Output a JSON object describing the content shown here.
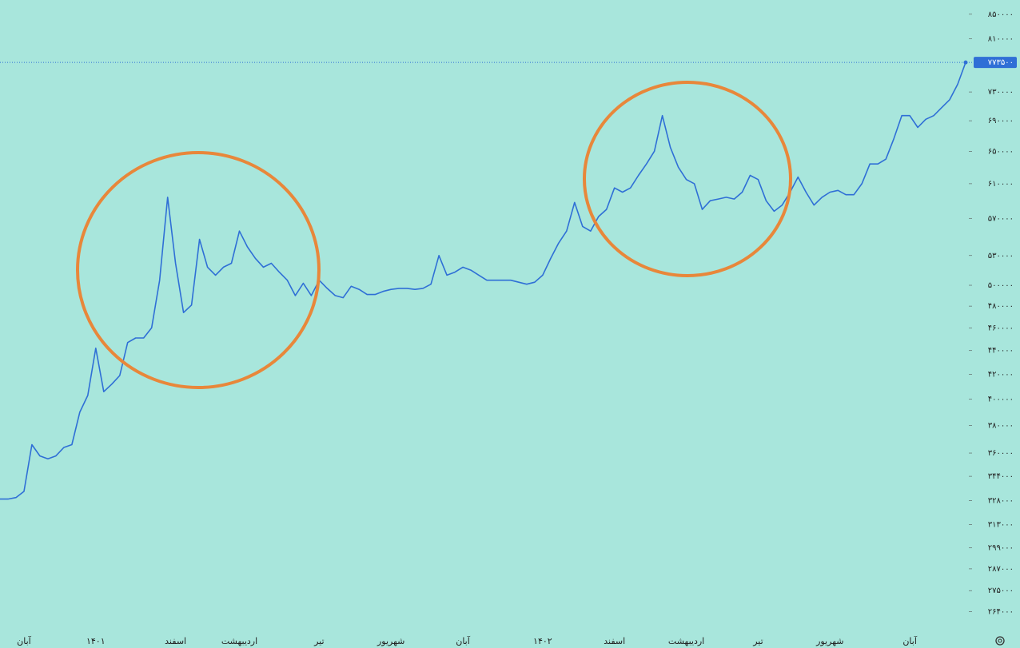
{
  "chart_data": {
    "type": "line",
    "scale": "log",
    "background": "#a8e6dc",
    "current_price": 773500,
    "current_price_label": "۷۷۳۵۰۰",
    "categories": [
      null,
      null,
      null,
      "آبان",
      null,
      null,
      null,
      null,
      null,
      null,
      null,
      null,
      "۱۴۰۱",
      null,
      null,
      null,
      null,
      null,
      null,
      null,
      null,
      null,
      "اسفند",
      null,
      null,
      null,
      null,
      null,
      null,
      null,
      "اردیبهشت",
      null,
      null,
      null,
      null,
      null,
      null,
      null,
      null,
      null,
      "تیر",
      null,
      null,
      null,
      null,
      null,
      null,
      null,
      null,
      "شهریور",
      null,
      null,
      null,
      null,
      null,
      null,
      null,
      null,
      "آبان",
      null,
      null,
      null,
      null,
      null,
      null,
      null,
      null,
      null,
      "۱۴۰۲",
      null,
      null,
      null,
      null,
      null,
      null,
      null,
      null,
      "اسفند",
      null,
      null,
      null,
      null,
      null,
      null,
      null,
      null,
      "اردیبهشت",
      null,
      null,
      null,
      null,
      null,
      null,
      null,
      null,
      "تیر",
      null,
      null,
      null,
      null,
      null,
      null,
      null,
      null,
      "شهریور",
      null,
      null,
      null,
      null,
      null,
      null,
      null,
      null,
      null,
      "آبان",
      null,
      null,
      null,
      null,
      null,
      null,
      null
    ],
    "series": [
      {
        "name": null,
        "color": "#2f6fd6",
        "values": [
          329000,
          329000,
          330000,
          334000,
          366000,
          358000,
          356000,
          358000,
          364000,
          366000,
          390000,
          403000,
          442000,
          406000,
          412000,
          419000,
          447000,
          451000,
          451000,
          460000,
          505000,
          594000,
          522000,
          474000,
          481000,
          547000,
          518000,
          510000,
          518000,
          522000,
          556000,
          539000,
          527000,
          518000,
          522000,
          513000,
          505000,
          490000,
          502000,
          490000,
          505000,
          497000,
          490000,
          488000,
          499000,
          496000,
          491000,
          491000,
          494000,
          496000,
          497000,
          497000,
          496000,
          497000,
          501000,
          530000,
          510000,
          513000,
          518000,
          515000,
          510000,
          505000,
          505000,
          505000,
          505000,
          503000,
          501000,
          503000,
          510000,
          527000,
          543000,
          556000,
          588000,
          561000,
          556000,
          572000,
          580000,
          605000,
          600000,
          605000,
          620000,
          634000,
          650000,
          697000,
          655000,
          630000,
          615000,
          610000,
          580000,
          590000,
          592000,
          594000,
          592000,
          600000,
          620000,
          615000,
          590000,
          578000,
          585000,
          600000,
          618000,
          600000,
          585000,
          594000,
          600000,
          602000,
          597000,
          597000,
          610000,
          634000,
          634000,
          640000,
          666000,
          697000,
          697000,
          681000,
          692000,
          697000,
          708000,
          719000,
          741000,
          773500
        ]
      }
    ],
    "ylim": [
      254000,
      874000
    ],
    "yticks": [
      {
        "value": 850000,
        "label": "۸۵۰۰۰۰"
      },
      {
        "value": 810000,
        "label": "۸۱۰۰۰۰"
      },
      {
        "value": 730000,
        "label": "۷۳۰۰۰۰"
      },
      {
        "value": 690000,
        "label": "۶۹۰۰۰۰"
      },
      {
        "value": 650000,
        "label": "۶۵۰۰۰۰"
      },
      {
        "value": 610000,
        "label": "۶۱۰۰۰۰"
      },
      {
        "value": 570000,
        "label": "۵۷۰۰۰۰"
      },
      {
        "value": 530000,
        "label": "۵۳۰۰۰۰"
      },
      {
        "value": 500000,
        "label": "۵۰۰۰۰۰"
      },
      {
        "value": 480000,
        "label": "۴۸۰۰۰۰"
      },
      {
        "value": 460000,
        "label": "۴۶۰۰۰۰"
      },
      {
        "value": 440000,
        "label": "۴۴۰۰۰۰"
      },
      {
        "value": 420000,
        "label": "۴۲۰۰۰۰"
      },
      {
        "value": 400000,
        "label": "۴۰۰۰۰۰"
      },
      {
        "value": 380000,
        "label": "۳۸۰۰۰۰"
      },
      {
        "value": 360000,
        "label": "۳۶۰۰۰۰"
      },
      {
        "value": 344000,
        "label": "۳۴۴۰۰۰"
      },
      {
        "value": 328000,
        "label": "۳۲۸۰۰۰"
      },
      {
        "value": 313000,
        "label": "۳۱۳۰۰۰"
      },
      {
        "value": 299000,
        "label": "۲۹۹۰۰۰"
      },
      {
        "value": 287000,
        "label": "۲۸۷۰۰۰"
      },
      {
        "value": 275000,
        "label": "۲۷۵۰۰۰"
      },
      {
        "value": 264000,
        "label": "۲۶۴۰۰۰"
      }
    ],
    "grid": false
  }
}
